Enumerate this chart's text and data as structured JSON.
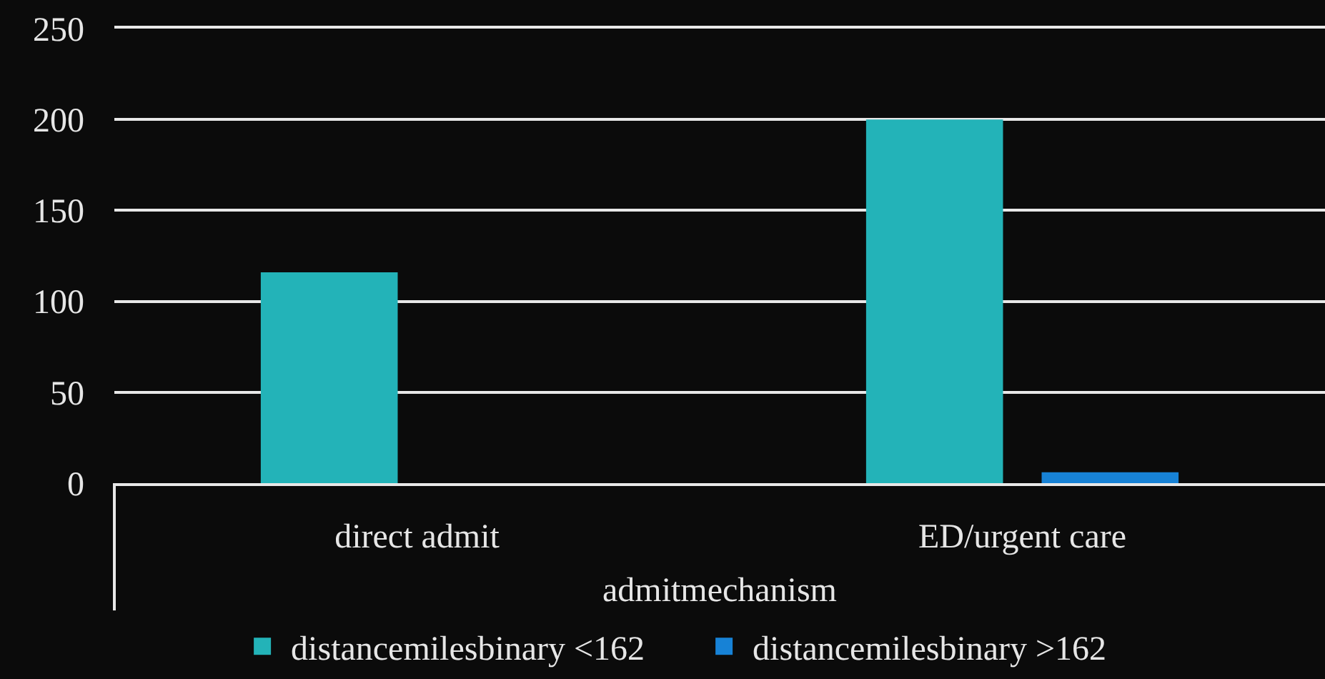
{
  "chart_data": {
    "type": "bar",
    "categories": [
      "direct admit",
      "ED/urgent care"
    ],
    "xlabel": "admitmechanism",
    "series": [
      {
        "name": "distancemilesbinary <162",
        "color": "#23b3b8",
        "values": [
          116,
          200
        ]
      },
      {
        "name": "distancemilesbinary >162",
        "color": "#1782d6",
        "values": [
          null,
          6
        ]
      }
    ],
    "ylim": [
      0,
      250
    ],
    "yticks": [
      0,
      50,
      100,
      150,
      200,
      250
    ],
    "grid": "y",
    "legend": "bottom"
  }
}
